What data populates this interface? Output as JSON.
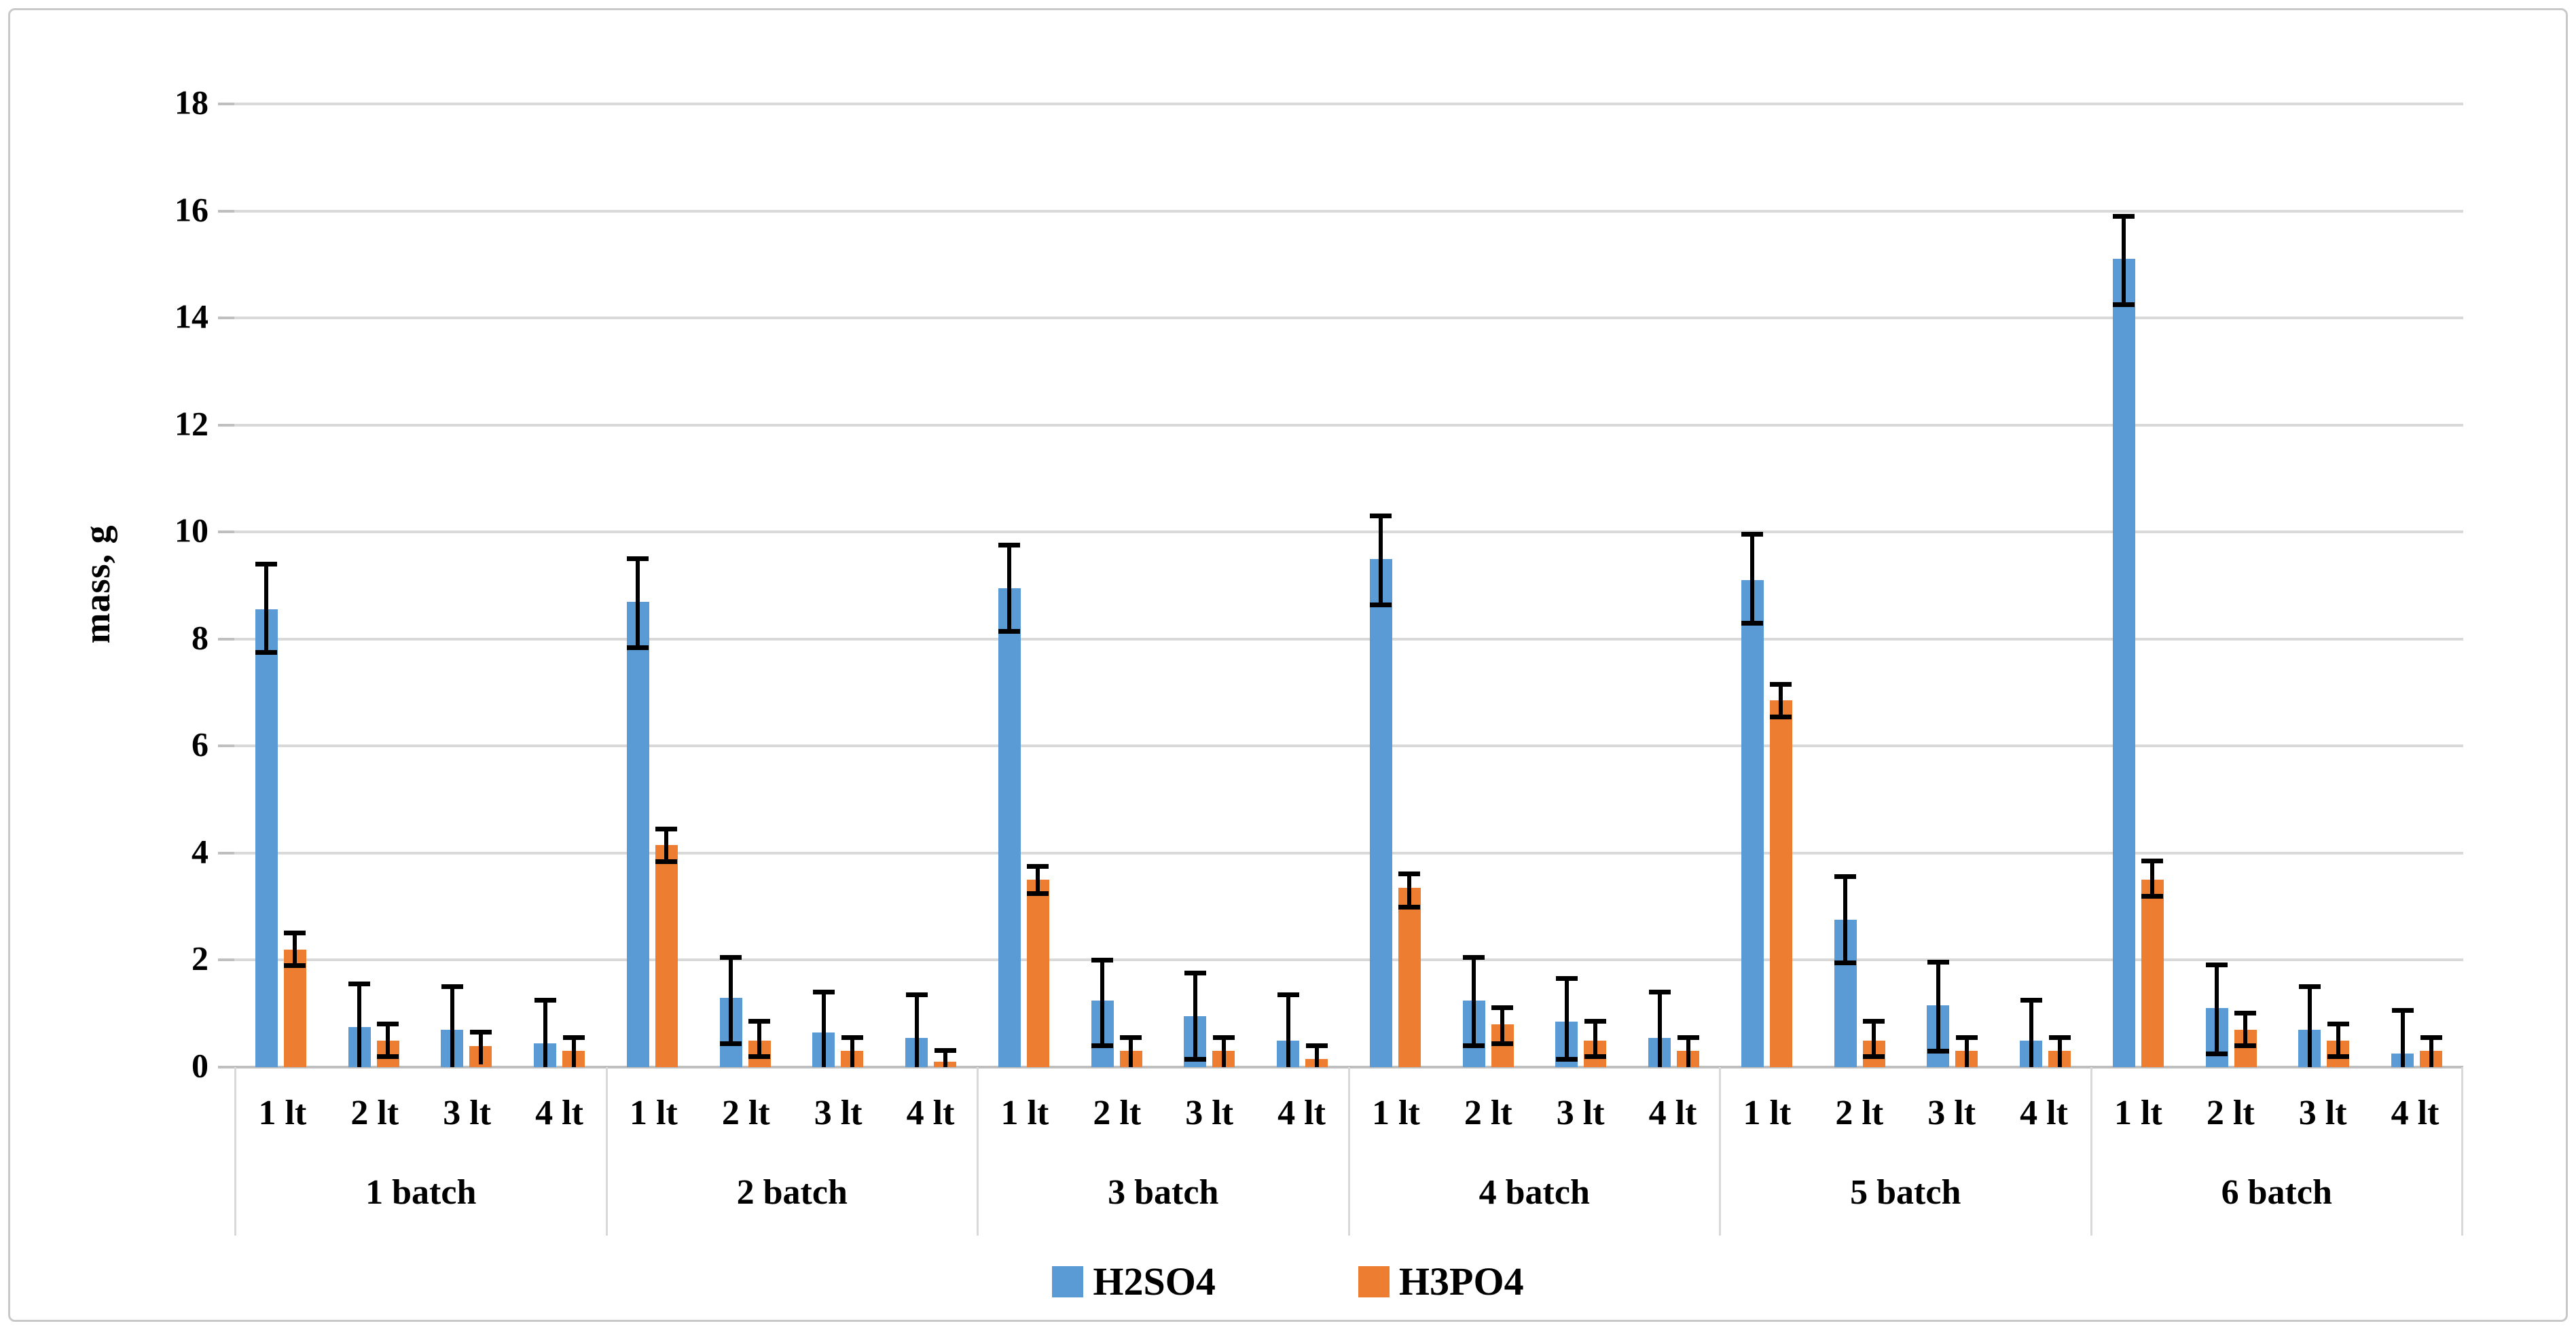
{
  "figure_title": "",
  "y_axis": {
    "label": "mass, g"
  },
  "legend": {
    "items": [
      {
        "label": "H2SO4",
        "color": "#5B9BD5"
      },
      {
        "label": "H3PO4",
        "color": "#ED7D31"
      }
    ]
  },
  "chart_data": {
    "type": "bar",
    "title": "",
    "xlabel": "",
    "ylabel": "mass, g",
    "ylim": [
      0,
      18
    ],
    "ytick_step": 2,
    "grid": true,
    "legend_position": "bottom",
    "group_labels": [
      "1 batch",
      "2 batch",
      "3 batch",
      "4 batch",
      "5 batch",
      "6 batch"
    ],
    "subgroup_labels": [
      "1 lt",
      "2 lt",
      "3 lt",
      "4 lt"
    ],
    "bar_colors": {
      "H2SO4": "#5B9BD5",
      "H3PO4": "#ED7D31"
    },
    "error_bars": true,
    "series": [
      {
        "name": "H2SO4",
        "color": "#5B9BD5",
        "values": [
          [
            8.55,
            0.75,
            0.7,
            0.45
          ],
          [
            8.7,
            1.3,
            0.65,
            0.55
          ],
          [
            8.95,
            1.25,
            0.95,
            0.5
          ],
          [
            9.5,
            1.25,
            0.85,
            0.55
          ],
          [
            9.1,
            2.75,
            1.15,
            0.5
          ],
          [
            15.1,
            1.1,
            0.7,
            0.25
          ]
        ],
        "error_high": [
          [
            9.45,
            1.6,
            1.55,
            1.3
          ],
          [
            9.55,
            2.1,
            1.45,
            1.4
          ],
          [
            9.8,
            2.05,
            1.8,
            1.4
          ],
          [
            10.35,
            2.1,
            1.7,
            1.45
          ],
          [
            10.0,
            3.6,
            2.0,
            1.3
          ],
          [
            15.95,
            1.95,
            1.55,
            1.1
          ]
        ],
        "error_low": [
          [
            7.7,
            0.0,
            0.0,
            0.0
          ],
          [
            7.8,
            0.4,
            0.0,
            0.0
          ],
          [
            8.1,
            0.35,
            0.1,
            0.0
          ],
          [
            8.6,
            0.35,
            0.1,
            0.0
          ],
          [
            8.25,
            1.9,
            0.25,
            0.0
          ],
          [
            14.2,
            0.2,
            0.0,
            0.0
          ]
        ]
      },
      {
        "name": "H3PO4",
        "color": "#ED7D31",
        "values": [
          [
            2.2,
            0.5,
            0.4,
            0.3
          ],
          [
            4.15,
            0.5,
            0.3,
            0.1
          ],
          [
            3.5,
            0.3,
            0.3,
            0.15
          ],
          [
            3.35,
            0.8,
            0.5,
            0.3
          ],
          [
            6.85,
            0.5,
            0.3,
            0.3
          ],
          [
            3.5,
            0.7,
            0.5,
            0.3
          ]
        ],
        "error_high": [
          [
            2.55,
            0.85,
            0.7,
            0.6
          ],
          [
            4.5,
            0.9,
            0.6,
            0.35
          ],
          [
            3.8,
            0.6,
            0.6,
            0.45
          ],
          [
            3.65,
            1.15,
            0.9,
            0.6
          ],
          [
            7.2,
            0.9,
            0.6,
            0.6
          ],
          [
            3.9,
            1.05,
            0.85,
            0.6
          ]
        ],
        "error_low": [
          [
            1.85,
            0.15,
            0.05,
            0.0
          ],
          [
            3.8,
            0.15,
            0.0,
            0.0
          ],
          [
            3.2,
            0.0,
            0.0,
            0.0
          ],
          [
            2.95,
            0.4,
            0.15,
            0.0
          ],
          [
            6.5,
            0.15,
            0.0,
            0.0
          ],
          [
            3.15,
            0.35,
            0.15,
            0.0
          ]
        ]
      }
    ]
  },
  "colors": {
    "gridline": "#d9d9d9",
    "axis_line": "#bfbfbf",
    "error_bar": "#000000",
    "border": "#c9c9c9",
    "text": "#000000"
  }
}
